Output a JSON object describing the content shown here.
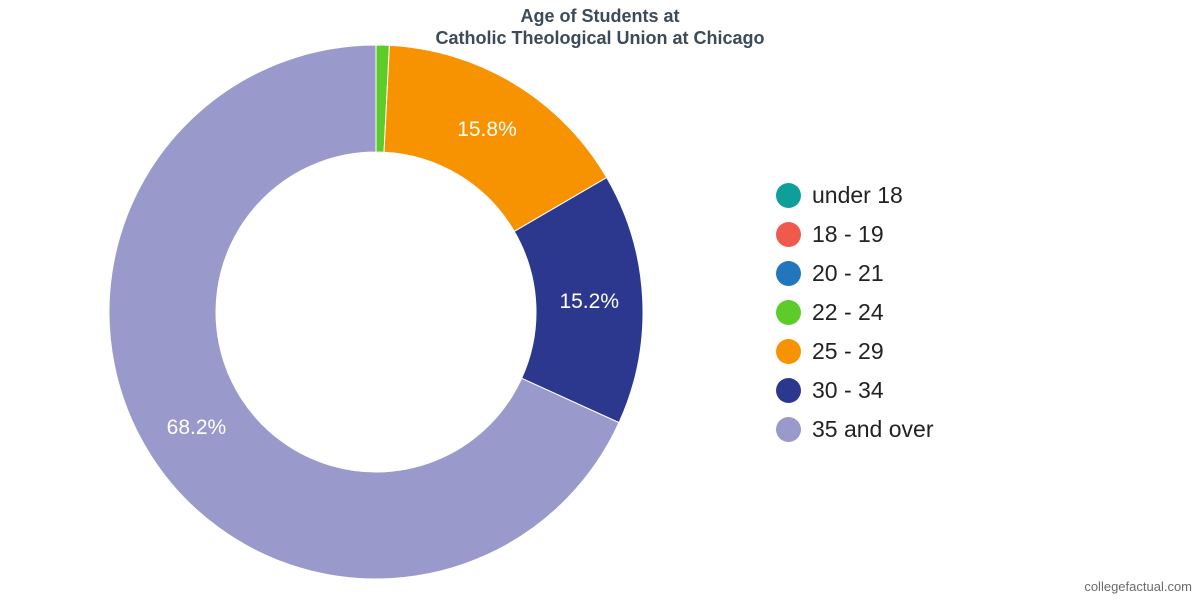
{
  "chart_data": {
    "type": "pie",
    "donut": true,
    "title": [
      "Age of Students at",
      "Catholic Theological Union at Chicago"
    ],
    "slices": [
      {
        "name": "under 18",
        "value": 0,
        "color": "#0e9f9b",
        "label": ""
      },
      {
        "name": "18 - 19",
        "value": 0,
        "color": "#ef5a4c",
        "label": ""
      },
      {
        "name": "20 - 21",
        "value": 0,
        "color": "#2176bd",
        "label": ""
      },
      {
        "name": "22 - 24",
        "value": 0.8,
        "color": "#5dcc2a",
        "label": ""
      },
      {
        "name": "25 - 29",
        "value": 15.8,
        "color": "#f79200",
        "label": "15.8%"
      },
      {
        "name": "30 - 34",
        "value": 15.2,
        "color": "#2c388e",
        "label": "15.2%"
      },
      {
        "name": "35 and over",
        "value": 68.2,
        "color": "#9a99cb",
        "label": "68.2%"
      }
    ],
    "legend_position": "right"
  },
  "watermark": "collegefactual.com"
}
